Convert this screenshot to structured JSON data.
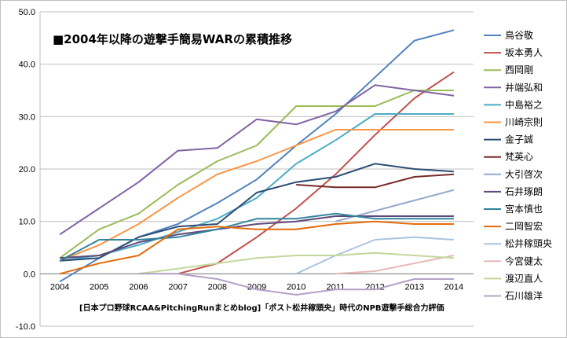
{
  "chart_data": {
    "type": "line",
    "title": "■2004年以降の遊撃手簡易WARの累積推移",
    "caption": "[日本プロ野球RCAA&PitchingRunまとめblog]「ポスト松井稼頭央」時代のNPB遊撃手総合力評価",
    "xlabel": "",
    "ylabel": "",
    "categories": [
      "2004",
      "2005",
      "2006",
      "2007",
      "2008",
      "2009",
      "2010",
      "2011",
      "2012",
      "2013",
      "2014"
    ],
    "ylim": [
      -10,
      50
    ],
    "yticks": [
      "-10.0",
      "0.0",
      "10.0",
      "20.0",
      "30.0",
      "40.0",
      "50.0"
    ],
    "grid": true,
    "legend_position": "right",
    "series": [
      {
        "name": "鳥谷敬",
        "color": "#4F81BD",
        "values": [
          -1.5,
          3.0,
          7.0,
          9.5,
          13.5,
          18.0,
          24.5,
          30.5,
          37.5,
          44.5,
          46.5
        ]
      },
      {
        "name": "坂本勇人",
        "color": "#C0504D",
        "values": [
          null,
          null,
          null,
          0.0,
          2.0,
          7.0,
          12.5,
          19.0,
          26.5,
          33.5,
          38.5
        ]
      },
      {
        "name": "西岡剛",
        "color": "#9BBB59",
        "values": [
          3.0,
          8.5,
          11.5,
          17.0,
          21.5,
          24.5,
          32.0,
          32.0,
          32.0,
          35.0,
          35.0
        ]
      },
      {
        "name": "井端弘和",
        "color": "#8064A2",
        "values": [
          7.5,
          12.5,
          17.5,
          23.5,
          24.0,
          29.5,
          28.5,
          31.0,
          36.0,
          35.0,
          34.0
        ]
      },
      {
        "name": "中島裕之",
        "color": "#4BACC6",
        "values": [
          2.5,
          3.5,
          5.5,
          8.0,
          10.5,
          14.5,
          21.0,
          25.5,
          30.5,
          30.5,
          30.5
        ]
      },
      {
        "name": "川崎宗則",
        "color": "#F79646",
        "values": [
          2.5,
          5.5,
          9.5,
          14.5,
          19.0,
          21.5,
          24.5,
          27.5,
          27.5,
          27.5,
          27.5
        ]
      },
      {
        "name": "金子誠",
        "color": "#2C4D75",
        "values": [
          2.5,
          3.0,
          7.0,
          9.0,
          9.5,
          15.5,
          17.5,
          18.5,
          21.0,
          20.0,
          19.5
        ]
      },
      {
        "name": "梵英心",
        "color": "#772C2A",
        "values": [
          null,
          null,
          null,
          null,
          null,
          null,
          17.0,
          16.5,
          16.5,
          18.5,
          19.0
        ]
      },
      {
        "name": "大引啓次",
        "color": "#93A9CE",
        "values": [
          null,
          null,
          null,
          null,
          null,
          null,
          null,
          10.0,
          12.0,
          14.0,
          16.0
        ]
      },
      {
        "name": "石井琢朗",
        "color": "#5F497A",
        "values": [
          3.0,
          3.5,
          6.0,
          7.5,
          8.5,
          9.5,
          10.0,
          11.0,
          11.0,
          11.0,
          11.0
        ]
      },
      {
        "name": "宮本慎也",
        "color": "#31859C",
        "values": [
          2.5,
          6.5,
          6.5,
          7.0,
          8.5,
          10.5,
          10.5,
          11.5,
          10.5,
          10.5,
          10.5
        ]
      },
      {
        "name": "二岡智宏",
        "color": "#E46C0A",
        "values": [
          0.0,
          2.0,
          3.5,
          8.5,
          9.0,
          8.5,
          8.5,
          9.5,
          10.0,
          9.5,
          9.5
        ]
      },
      {
        "name": "松井稼頭央",
        "color": "#A9C4E0",
        "values": [
          null,
          null,
          null,
          null,
          null,
          null,
          0.0,
          3.5,
          6.5,
          7.0,
          6.5
        ]
      },
      {
        "name": "今宮健太",
        "color": "#E6B9B8",
        "values": [
          null,
          null,
          null,
          null,
          null,
          null,
          null,
          0.0,
          0.5,
          2.0,
          3.5
        ]
      },
      {
        "name": "渡辺直人",
        "color": "#C4D79B",
        "values": [
          null,
          null,
          0.0,
          1.0,
          2.0,
          3.0,
          3.5,
          3.5,
          4.0,
          3.5,
          3.0
        ]
      },
      {
        "name": "石川雄洋",
        "color": "#B2A1C7",
        "values": [
          null,
          null,
          0.0,
          0.0,
          -1.0,
          -3.0,
          -4.0,
          -3.0,
          -3.0,
          -1.0,
          -1.0
        ]
      }
    ]
  }
}
